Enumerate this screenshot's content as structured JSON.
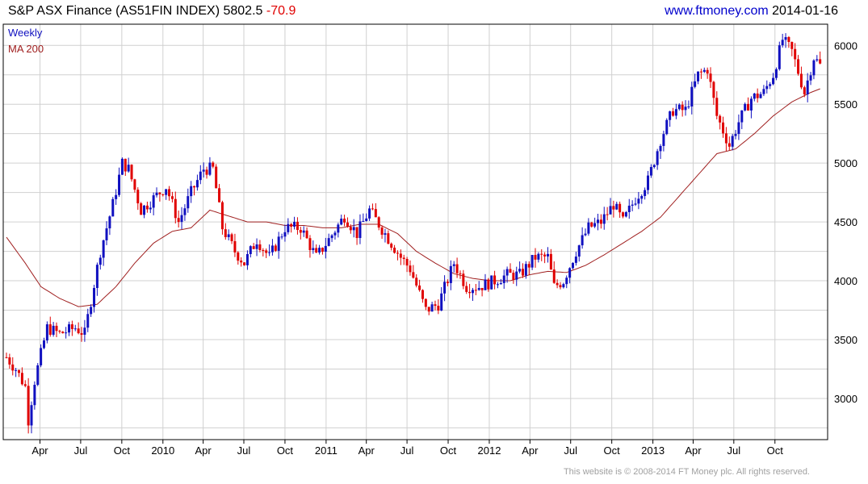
{
  "header": {
    "index_name": "S&P ASX Finance (AS51FIN INDEX)",
    "last_value": "5802.5",
    "change": "-70.9",
    "site": "www.ftmoney.com",
    "date": "2014-01-16"
  },
  "legend": {
    "period": "Weekly",
    "ma": "MA 200"
  },
  "footer": "This website is © 2008-2014 FT Money plc. All rights reserved.",
  "colors": {
    "up": "#1010c0",
    "down": "#e00000",
    "ma": "#a02020",
    "grid": "#d0d0d0",
    "text": "#000000"
  },
  "chart_data": {
    "type": "candlestick",
    "period": "weekly",
    "ylim": [
      2650,
      6180
    ],
    "y_ticks": [
      3000,
      3500,
      4000,
      4500,
      5000,
      5500,
      6000
    ],
    "x_tick_labels": [
      "Apr",
      "Jul",
      "Oct",
      "2010",
      "Apr",
      "Jul",
      "Oct",
      "2011",
      "Apr",
      "Jul",
      "Oct",
      "2012",
      "Apr",
      "Jul",
      "Oct",
      "2013",
      "Apr",
      "Jul",
      "Oct"
    ],
    "x_tick_dates": [
      "2009-04",
      "2009-07",
      "2009-10",
      "2010-01",
      "2010-04",
      "2010-07",
      "2010-10",
      "2011-01",
      "2011-04",
      "2011-07",
      "2011-10",
      "2012-01",
      "2012-04",
      "2012-07",
      "2012-10",
      "2013-01",
      "2013-04",
      "2013-07",
      "2013-10"
    ],
    "x_range": [
      "2009-01-16",
      "2014-01-16"
    ],
    "close_anchors": [
      [
        "2009-01-16",
        3350
      ],
      [
        "2009-02-06",
        3250
      ],
      [
        "2009-02-27",
        3100
      ],
      [
        "2009-03-06",
        2820
      ],
      [
        "2009-03-20",
        3150
      ],
      [
        "2009-04-17",
        3600
      ],
      [
        "2009-05-15",
        3550
      ],
      [
        "2009-06-19",
        3600
      ],
      [
        "2009-07-10",
        3550
      ],
      [
        "2009-08-14",
        4250
      ],
      [
        "2009-09-11",
        4650
      ],
      [
        "2009-10-02",
        5000
      ],
      [
        "2009-10-16",
        4950
      ],
      [
        "2009-11-13",
        4600
      ],
      [
        "2009-12-11",
        4700
      ],
      [
        "2010-01-08",
        4800
      ],
      [
        "2010-02-05",
        4500
      ],
      [
        "2010-03-05",
        4750
      ],
      [
        "2010-04-02",
        4950
      ],
      [
        "2010-04-23",
        4950
      ],
      [
        "2010-05-14",
        4450
      ],
      [
        "2010-06-11",
        4250
      ],
      [
        "2010-07-02",
        4150
      ],
      [
        "2010-07-30",
        4350
      ],
      [
        "2010-08-27",
        4200
      ],
      [
        "2010-10-01",
        4450
      ],
      [
        "2010-11-05",
        4450
      ],
      [
        "2010-12-10",
        4200
      ],
      [
        "2011-01-07",
        4350
      ],
      [
        "2011-02-11",
        4550
      ],
      [
        "2011-03-11",
        4400
      ],
      [
        "2011-04-08",
        4600
      ],
      [
        "2011-05-13",
        4400
      ],
      [
        "2011-06-17",
        4200
      ],
      [
        "2011-07-08",
        4100
      ],
      [
        "2011-08-12",
        3750
      ],
      [
        "2011-09-09",
        3800
      ],
      [
        "2011-10-14",
        4150
      ],
      [
        "2011-11-11",
        3950
      ],
      [
        "2011-12-09",
        3950
      ],
      [
        "2012-01-13",
        4000
      ],
      [
        "2012-02-10",
        4050
      ],
      [
        "2012-03-09",
        4050
      ],
      [
        "2012-04-13",
        4200
      ],
      [
        "2012-05-11",
        4200
      ],
      [
        "2012-05-25",
        3950
      ],
      [
        "2012-06-15",
        4000
      ],
      [
        "2012-07-13",
        4250
      ],
      [
        "2012-08-10",
        4450
      ],
      [
        "2012-09-07",
        4500
      ],
      [
        "2012-10-05",
        4650
      ],
      [
        "2012-10-26",
        4500
      ],
      [
        "2012-11-23",
        4700
      ],
      [
        "2012-12-21",
        4850
      ],
      [
        "2013-01-18",
        5200
      ],
      [
        "2013-02-15",
        5450
      ],
      [
        "2013-03-15",
        5450
      ],
      [
        "2013-04-12",
        5750
      ],
      [
        "2013-05-03",
        5800
      ],
      [
        "2013-05-24",
        5400
      ],
      [
        "2013-06-21",
        5150
      ],
      [
        "2013-07-12",
        5350
      ],
      [
        "2013-08-09",
        5550
      ],
      [
        "2013-09-06",
        5600
      ],
      [
        "2013-09-27",
        5750
      ],
      [
        "2013-10-18",
        6050
      ],
      [
        "2013-11-08",
        5950
      ],
      [
        "2013-12-06",
        5600
      ],
      [
        "2013-12-27",
        5900
      ],
      [
        "2014-01-16",
        5800
      ]
    ],
    "ma200_anchors": [
      [
        "2009-01-16",
        4370
      ],
      [
        "2009-02-27",
        4150
      ],
      [
        "2009-04-03",
        3950
      ],
      [
        "2009-05-15",
        3850
      ],
      [
        "2009-06-26",
        3780
      ],
      [
        "2009-08-07",
        3800
      ],
      [
        "2009-09-18",
        3950
      ],
      [
        "2009-10-30",
        4150
      ],
      [
        "2009-12-11",
        4320
      ],
      [
        "2010-01-22",
        4420
      ],
      [
        "2010-03-05",
        4450
      ],
      [
        "2010-04-16",
        4600
      ],
      [
        "2010-05-28",
        4550
      ],
      [
        "2010-07-09",
        4500
      ],
      [
        "2010-08-20",
        4500
      ],
      [
        "2010-10-01",
        4470
      ],
      [
        "2010-11-12",
        4470
      ],
      [
        "2010-12-24",
        4450
      ],
      [
        "2011-02-04",
        4450
      ],
      [
        "2011-03-18",
        4480
      ],
      [
        "2011-04-29",
        4480
      ],
      [
        "2011-06-10",
        4400
      ],
      [
        "2011-07-22",
        4250
      ],
      [
        "2011-09-02",
        4150
      ],
      [
        "2011-10-14",
        4060
      ],
      [
        "2011-11-25",
        4020
      ],
      [
        "2012-01-06",
        4000
      ],
      [
        "2012-02-17",
        4000
      ],
      [
        "2012-03-30",
        4050
      ],
      [
        "2012-05-11",
        4080
      ],
      [
        "2012-06-22",
        4070
      ],
      [
        "2012-08-03",
        4130
      ],
      [
        "2012-09-14",
        4220
      ],
      [
        "2012-10-26",
        4320
      ],
      [
        "2012-12-07",
        4420
      ],
      [
        "2013-01-18",
        4540
      ],
      [
        "2013-03-01",
        4720
      ],
      [
        "2013-04-12",
        4900
      ],
      [
        "2013-05-24",
        5080
      ],
      [
        "2013-07-05",
        5120
      ],
      [
        "2013-08-16",
        5250
      ],
      [
        "2013-09-27",
        5400
      ],
      [
        "2013-11-08",
        5520
      ],
      [
        "2013-12-20",
        5600
      ],
      [
        "2014-01-16",
        5640
      ]
    ]
  }
}
